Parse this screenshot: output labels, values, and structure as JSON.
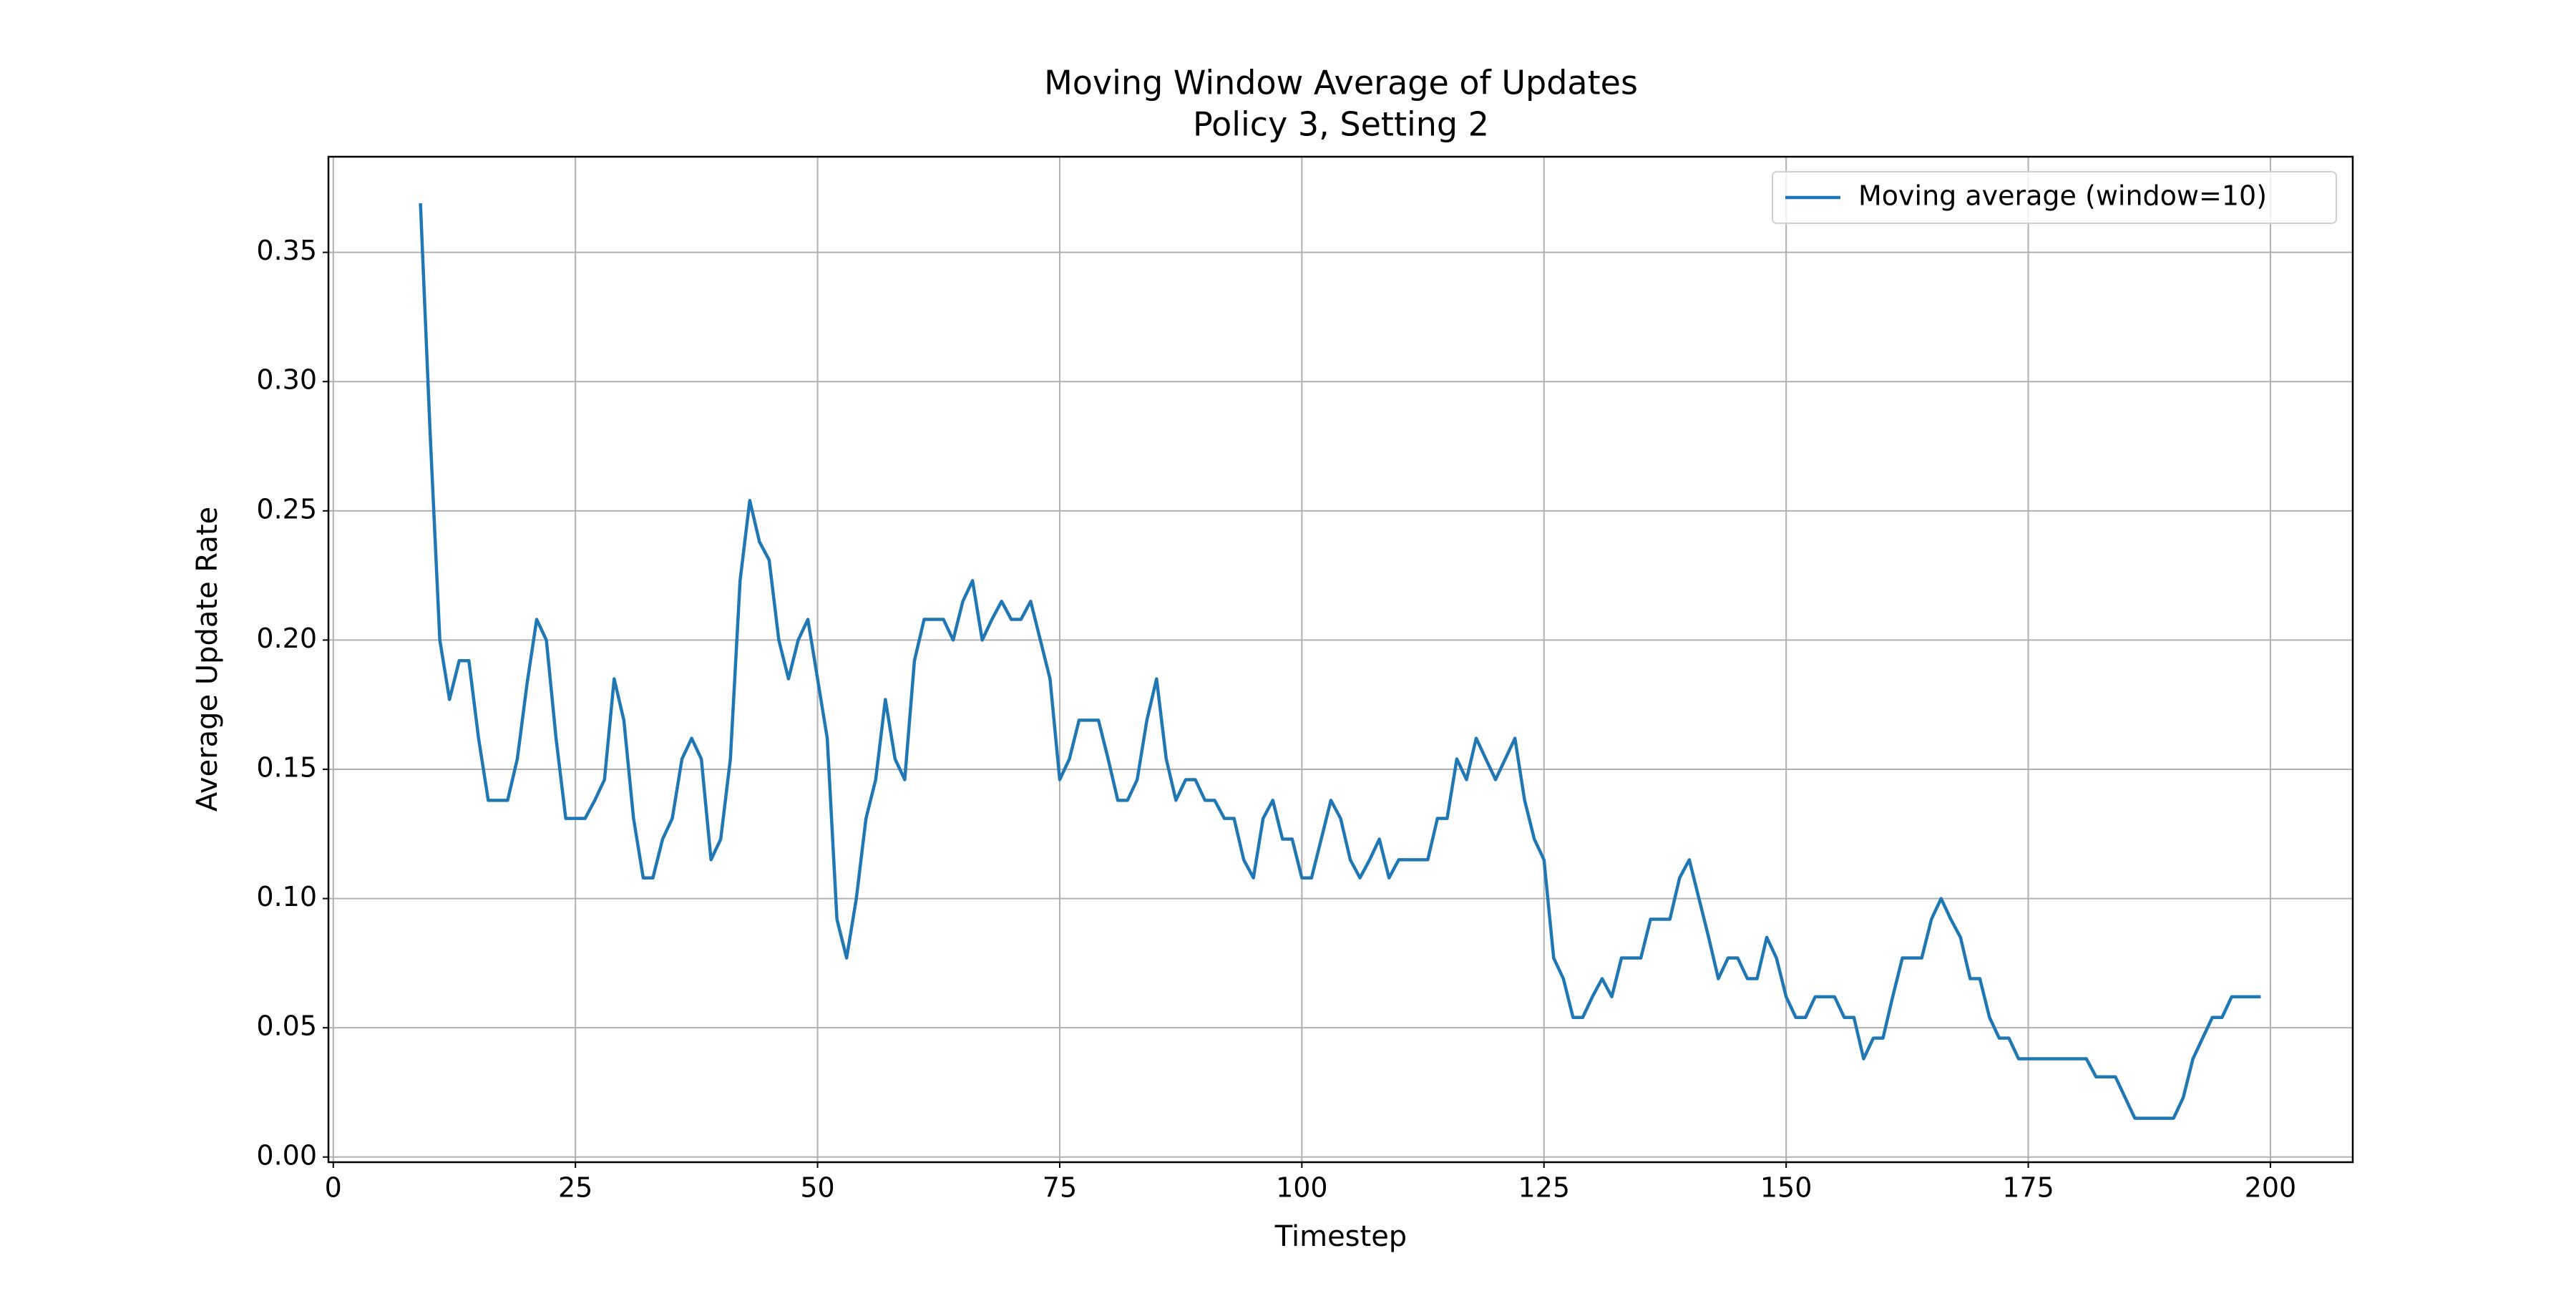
{
  "chart_data": {
    "type": "line",
    "title": "Moving Window Average of Updates",
    "subtitle": "Policy 3, Setting 2",
    "x_label": "Timestep",
    "y_label": "Average Update Rate",
    "x": [
      9,
      10,
      11,
      12,
      13,
      14,
      15,
      16,
      17,
      18,
      19,
      20,
      21,
      22,
      23,
      24,
      25,
      26,
      27,
      28,
      29,
      30,
      31,
      32,
      33,
      34,
      35,
      36,
      37,
      38,
      39,
      40,
      41,
      42,
      43,
      44,
      45,
      46,
      47,
      48,
      49,
      50,
      51,
      52,
      53,
      54,
      55,
      56,
      57,
      58,
      59,
      60,
      61,
      62,
      63,
      64,
      65,
      66,
      67,
      68,
      69,
      70,
      71,
      72,
      73,
      74,
      75,
      76,
      77,
      78,
      79,
      80,
      81,
      82,
      83,
      84,
      85,
      86,
      87,
      88,
      89,
      90,
      91,
      92,
      93,
      94,
      95,
      96,
      97,
      98,
      99,
      100,
      101,
      102,
      103,
      104,
      105,
      106,
      107,
      108,
      109,
      110,
      111,
      112,
      113,
      114,
      115,
      116,
      117,
      118,
      119,
      120,
      121,
      122,
      123,
      124,
      125,
      126,
      127,
      128,
      129,
      130,
      131,
      132,
      133,
      134,
      135,
      136,
      137,
      138,
      139,
      140,
      141,
      142,
      143,
      144,
      145,
      146,
      147,
      148,
      149,
      150,
      151,
      152,
      153,
      154,
      155,
      156,
      157,
      158,
      159,
      160,
      161,
      162,
      163,
      164,
      165,
      166,
      167,
      168,
      169,
      170,
      171,
      172,
      173,
      174,
      175,
      176,
      177,
      178,
      179,
      180,
      181,
      182,
      183,
      184,
      185,
      186,
      187,
      188,
      189,
      190,
      191,
      192,
      193,
      194,
      195,
      196,
      197,
      198,
      199
    ],
    "series": [
      {
        "name": "Moving average (window=10)",
        "color": "#1f77b4",
        "values": [
          0.369,
          0.28,
          0.2,
          0.177,
          0.192,
          0.192,
          0.162,
          0.138,
          0.138,
          0.138,
          0.154,
          0.183,
          0.208,
          0.2,
          0.162,
          0.131,
          0.131,
          0.131,
          0.138,
          0.146,
          0.185,
          0.169,
          0.131,
          0.108,
          0.108,
          0.123,
          0.131,
          0.154,
          0.162,
          0.154,
          0.115,
          0.123,
          0.154,
          0.223,
          0.254,
          0.238,
          0.231,
          0.2,
          0.185,
          0.2,
          0.208,
          0.185,
          0.162,
          0.092,
          0.077,
          0.1,
          0.131,
          0.146,
          0.177,
          0.154,
          0.146,
          0.192,
          0.208,
          0.208,
          0.208,
          0.2,
          0.215,
          0.223,
          0.2,
          0.208,
          0.215,
          0.208,
          0.208,
          0.215,
          0.2,
          0.185,
          0.146,
          0.154,
          0.169,
          0.169,
          0.169,
          0.154,
          0.138,
          0.138,
          0.146,
          0.169,
          0.185,
          0.154,
          0.138,
          0.146,
          0.146,
          0.138,
          0.138,
          0.131,
          0.131,
          0.115,
          0.108,
          0.131,
          0.138,
          0.123,
          0.123,
          0.108,
          0.108,
          0.123,
          0.138,
          0.131,
          0.115,
          0.108,
          0.115,
          0.123,
          0.108,
          0.115,
          0.115,
          0.115,
          0.115,
          0.131,
          0.131,
          0.154,
          0.146,
          0.162,
          0.154,
          0.146,
          0.154,
          0.162,
          0.138,
          0.123,
          0.115,
          0.077,
          0.069,
          0.054,
          0.054,
          0.062,
          0.069,
          0.062,
          0.077,
          0.077,
          0.077,
          0.092,
          0.092,
          0.092,
          0.108,
          0.115,
          0.1,
          0.085,
          0.069,
          0.077,
          0.077,
          0.069,
          0.069,
          0.085,
          0.077,
          0.062,
          0.054,
          0.054,
          0.062,
          0.062,
          0.062,
          0.054,
          0.054,
          0.038,
          0.046,
          0.046,
          0.062,
          0.077,
          0.077,
          0.077,
          0.092,
          0.1,
          0.092,
          0.085,
          0.069,
          0.069,
          0.054,
          0.046,
          0.046,
          0.038,
          0.038,
          0.038,
          0.038,
          0.038,
          0.038,
          0.038,
          0.038,
          0.031,
          0.031,
          0.031,
          0.023,
          0.015,
          0.015,
          0.015,
          0.015,
          0.015,
          0.023,
          0.038,
          0.046,
          0.054,
          0.054,
          0.062,
          0.062,
          0.062,
          0.062
        ]
      }
    ],
    "xlim": [
      -0.5,
      208.5
    ],
    "ylim": [
      -0.002,
      0.387
    ],
    "xticks": [
      0,
      25,
      50,
      75,
      100,
      125,
      150,
      175,
      200
    ],
    "yticks": [
      {
        "value": 0,
        "label": "0.00"
      },
      0.05,
      {
        "value": 0.1,
        "label": "0.10"
      },
      0.15,
      {
        "value": 0.2,
        "label": "0.20"
      },
      0.25,
      {
        "value": 0.3,
        "label": "0.30"
      },
      0.35
    ],
    "grid": true,
    "legend": "upper right"
  }
}
